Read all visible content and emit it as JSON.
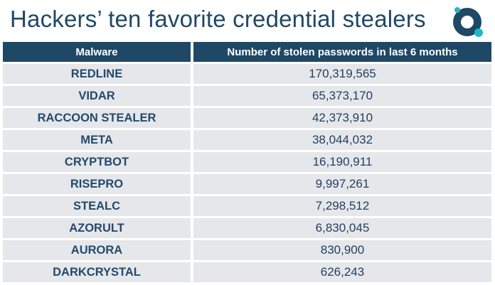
{
  "title": "Hackers’ ten favorite credential stealers",
  "logo": {
    "icon": "brand-logo-icon",
    "color_dark": "#1f4866",
    "color_accent": "#1fb8c8"
  },
  "colors": {
    "header_bg": "#1f4866",
    "row_bg": "#e6e7ea",
    "text": "#244a6e"
  },
  "chart_data": {
    "type": "table",
    "title": "Hackers’ ten favorite credential stealers",
    "columns": [
      "Malware",
      "Number of stolen passwords in last 6 months"
    ],
    "rows": [
      [
        "REDLINE",
        "170,319,565"
      ],
      [
        "VIDAR",
        "65,373,170"
      ],
      [
        "RACCOON STEALER",
        "42,373,910"
      ],
      [
        "META",
        "38,044,032"
      ],
      [
        "CRYPTBOT",
        "16,190,911"
      ],
      [
        "RISEPRO",
        "9,997,261"
      ],
      [
        "STEALC",
        "7,298,512"
      ],
      [
        "AZORULT",
        "6,830,045"
      ],
      [
        "AURORA",
        "830,900"
      ],
      [
        "DARKCRYSTAL",
        "626,243"
      ]
    ]
  }
}
